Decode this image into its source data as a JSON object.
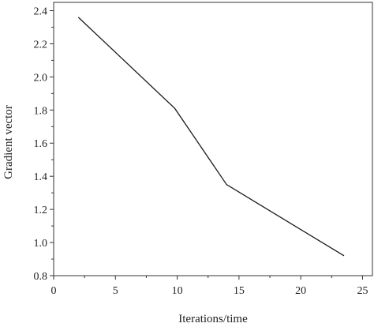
{
  "chart_data": {
    "type": "line",
    "title": "",
    "xlabel": "Iterations/time",
    "ylabel": "Gradient vector",
    "xlim": [
      0,
      25.8
    ],
    "ylim": [
      0.8,
      2.45
    ],
    "xticks": [
      0,
      5,
      10,
      15,
      20,
      25
    ],
    "xtick_labels": [
      "0",
      "5",
      "10",
      "15",
      "20",
      "25"
    ],
    "yticks": [
      0.8,
      1.0,
      1.2,
      1.4,
      1.6,
      1.8,
      2.0,
      2.2,
      2.4
    ],
    "ytick_labels": [
      "0.8",
      "1.0",
      "1.2",
      "1.4",
      "1.6",
      "1.8",
      "2.0",
      "2.2",
      "2.4"
    ],
    "grid": false,
    "legend": "none",
    "series": [
      {
        "x": [
          2,
          9.8,
          14,
          23.5
        ],
        "y": [
          2.36,
          1.81,
          1.35,
          0.92
        ]
      }
    ],
    "colors": {
      "line": "#1a1a1a",
      "axis": "#333333"
    }
  }
}
